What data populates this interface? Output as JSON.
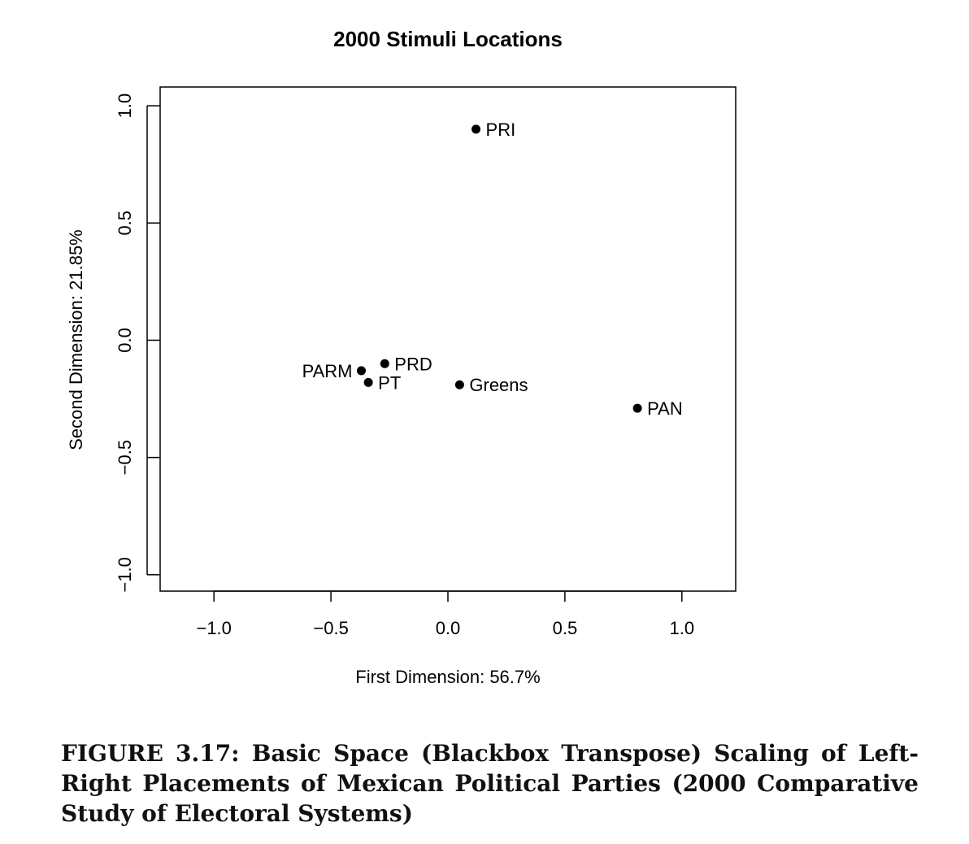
{
  "chart_data": {
    "type": "scatter",
    "title": "2000 Stimuli Locations",
    "xlabel": "First Dimension: 56.7%",
    "ylabel": "Second Dimension: 21.85%",
    "xlim": [
      -1.23,
      1.23
    ],
    "ylim": [
      -1.07,
      1.08
    ],
    "xticks": [
      -1.0,
      -0.5,
      0.0,
      0.5,
      1.0
    ],
    "xtick_labels": [
      "−1.0",
      "−0.5",
      "0.0",
      "0.5",
      "1.0"
    ],
    "yticks": [
      -1.0,
      -0.5,
      0.0,
      0.5,
      1.0
    ],
    "ytick_labels": [
      "−1.0",
      "−0.5",
      "0.0",
      "0.5",
      "1.0"
    ],
    "grid": false,
    "legend": "none",
    "points": [
      {
        "label": "PRI",
        "x": 0.12,
        "y": 0.9,
        "label_pos": "right"
      },
      {
        "label": "PRD",
        "x": -0.27,
        "y": -0.1,
        "label_pos": "right"
      },
      {
        "label": "PARM",
        "x": -0.37,
        "y": -0.13,
        "label_pos": "left"
      },
      {
        "label": "PT",
        "x": -0.34,
        "y": -0.18,
        "label_pos": "right"
      },
      {
        "label": "Greens",
        "x": 0.05,
        "y": -0.19,
        "label_pos": "right"
      },
      {
        "label": "PAN",
        "x": 0.81,
        "y": -0.29,
        "label_pos": "right"
      }
    ]
  },
  "caption": "FIGURE 3.17: Basic Space (Blackbox Transpose) Scaling of Left-Right Placements of Mexican Political Parties (2000 Comparative Study of Electoral Systems)"
}
